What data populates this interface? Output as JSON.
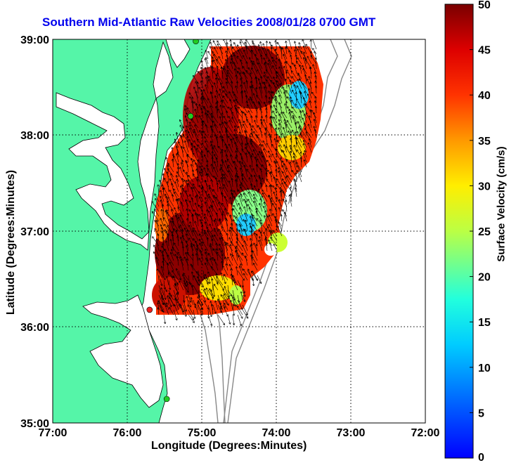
{
  "title": "Southern Mid-Atlantic Raw Velocities 2008/01/28 0700 GMT",
  "map": {
    "xlabel": "Longitude (Degrees:Minutes)",
    "ylabel": "Latitude (Degrees:Minutes)",
    "x_ticks": [
      "77:00",
      "76:00",
      "75:00",
      "74:00",
      "73:00",
      "72:00"
    ],
    "y_ticks": [
      "39:00",
      "38:00",
      "37:00",
      "36:00",
      "35:00"
    ],
    "lon_range": [
      -77,
      -72
    ],
    "lat_range": [
      35,
      39
    ],
    "colors": {
      "land": "#55f5a8",
      "water": "#ffffff",
      "coast_line": "#000000",
      "bathymetry": "#888888",
      "grid": "#000000"
    }
  },
  "colorbar": {
    "label": "Surface Velocity (cm/s)",
    "ticks": [
      "0",
      "5",
      "10",
      "15",
      "20",
      "25",
      "30",
      "35",
      "40",
      "45",
      "50"
    ],
    "range": [
      0,
      50
    ],
    "colormap": "jet"
  },
  "stations": [
    {
      "lon": -75.08,
      "lat": 38.98,
      "color": "#22cc22"
    },
    {
      "lon": -75.15,
      "lat": 38.2,
      "color": "#22cc22"
    },
    {
      "lon": -75.7,
      "lat": 36.18,
      "color": "#ee2222"
    },
    {
      "lon": -75.47,
      "lat": 35.25,
      "color": "#22cc22"
    }
  ]
}
